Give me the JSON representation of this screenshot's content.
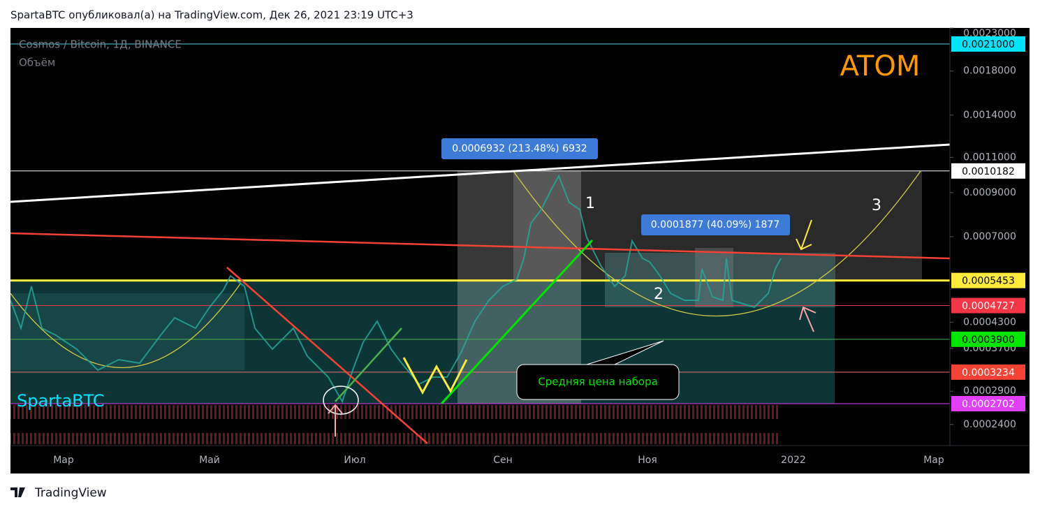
{
  "header": {
    "text": "SpartaBTC опубликовал(а) на TradingView.com, Дек 26, 2021 23:19 UTC+3"
  },
  "chart": {
    "symbol": "Cosmos / Bitcoin, 1Д, BINANCE",
    "indicator": "Объём",
    "watermark": "SpartaBTC",
    "ticker_label": "ATOM",
    "price_axis": [
      {
        "value": 0.0023,
        "label": "0.0023000"
      },
      {
        "value": 0.0018,
        "label": "0.0018000"
      },
      {
        "value": 0.0014,
        "label": "0.0014000"
      },
      {
        "value": 0.0011,
        "label": "0.0011000"
      },
      {
        "value": 0.0009,
        "label": "0.0009000"
      },
      {
        "value": 0.0007,
        "label": "0.0007000"
      },
      {
        "value": 0.00043,
        "label": "0.0004300"
      },
      {
        "value": 0.00037,
        "label": "0.0003700"
      },
      {
        "value": 0.00029,
        "label": "0.0002900"
      },
      {
        "value": 0.00024,
        "label": "0.0002400"
      }
    ],
    "price_tags": [
      {
        "value": 0.0021,
        "label": "0.0021000",
        "color": "#00e5ff",
        "text_color": "#000000",
        "line_color": "#4dd0e1"
      },
      {
        "value": 0.0010182,
        "label": "0.0010182",
        "color": "#ffffff",
        "text_color": "#000000",
        "line_color": "#ffffff"
      },
      {
        "value": 0.0005453,
        "label": "0.0005453",
        "color": "#ffeb3b",
        "text_color": "#000000",
        "line_color": "#ffeb3b"
      },
      {
        "value": 0.0004727,
        "label": "0.0004727",
        "color": "#f23645",
        "text_color": "#ffffff",
        "line_color": "#f23645"
      },
      {
        "value": 0.00039,
        "label": "0.0003900",
        "color": "#00e600",
        "text_color": "#000000",
        "line_color": "#4caf50"
      },
      {
        "value": 0.0003234,
        "label": "0.0003234",
        "color": "#f44336",
        "text_color": "#ffffff",
        "line_color": "#e57373"
      },
      {
        "value": 0.0002702,
        "label": "0.0002702",
        "color": "#e040fb",
        "text_color": "#ffffff",
        "line_color": "#e040fb"
      }
    ],
    "time_axis": [
      "Мар",
      "Май",
      "Июл",
      "Сен",
      "Ноя",
      "2022",
      "Мар"
    ],
    "measurements": [
      "0.0006932 (213.48%) 6932",
      "0.0001877 (40.09%) 1877"
    ],
    "annotations": [
      "1",
      "2",
      "3"
    ],
    "callout": "Средняя цена набора"
  },
  "footer": {
    "brand": "TradingView"
  }
}
